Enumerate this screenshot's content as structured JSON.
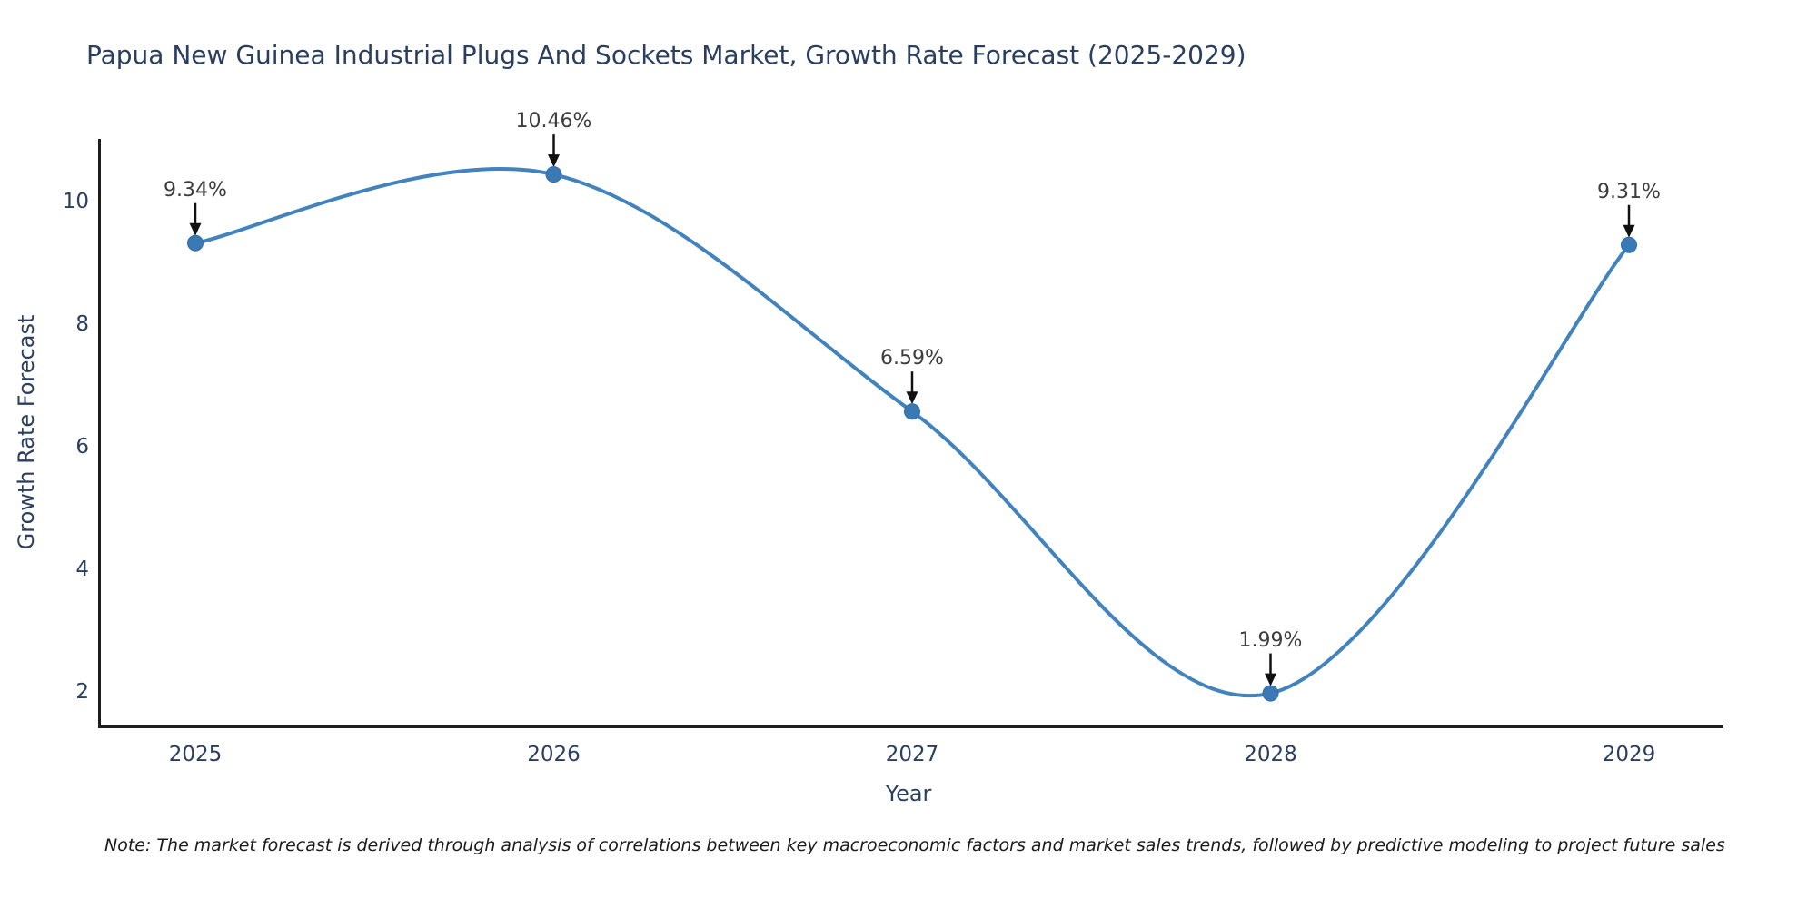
{
  "title": "Papua New Guinea Industrial Plugs And Sockets Market, Growth Rate Forecast (2025-2029)",
  "note": "Note: The market forecast is derived through analysis of correlations between key macroeconomic factors and market sales trends, followed by predictive modeling to project future sales",
  "chart_data": {
    "type": "line",
    "title": "Papua New Guinea Industrial Plugs And Sockets Market, Growth Rate Forecast (2025-2029)",
    "xlabel": "Year",
    "ylabel": "Growth Rate Forecast",
    "categories": [
      "2025",
      "2026",
      "2027",
      "2028",
      "2029"
    ],
    "values": [
      9.34,
      10.46,
      6.59,
      1.99,
      9.31
    ],
    "point_labels": [
      "9.34%",
      "10.46%",
      "6.59%",
      "1.99%",
      "9.31%"
    ],
    "yticks": [
      2,
      4,
      6,
      8,
      10
    ],
    "ylim": [
      1.45,
      11.04
    ],
    "line_shape": "spline",
    "grid": false,
    "legend": "none",
    "colors": {
      "line": "#4283bd",
      "marker": "#3a79b4",
      "marker_edge": "#2f6da8",
      "axis": "#1c1c1c",
      "text": "#2a3f5f",
      "annotation": "#3d3d3d",
      "arrow": "#111111",
      "background": "#ffffff"
    }
  }
}
